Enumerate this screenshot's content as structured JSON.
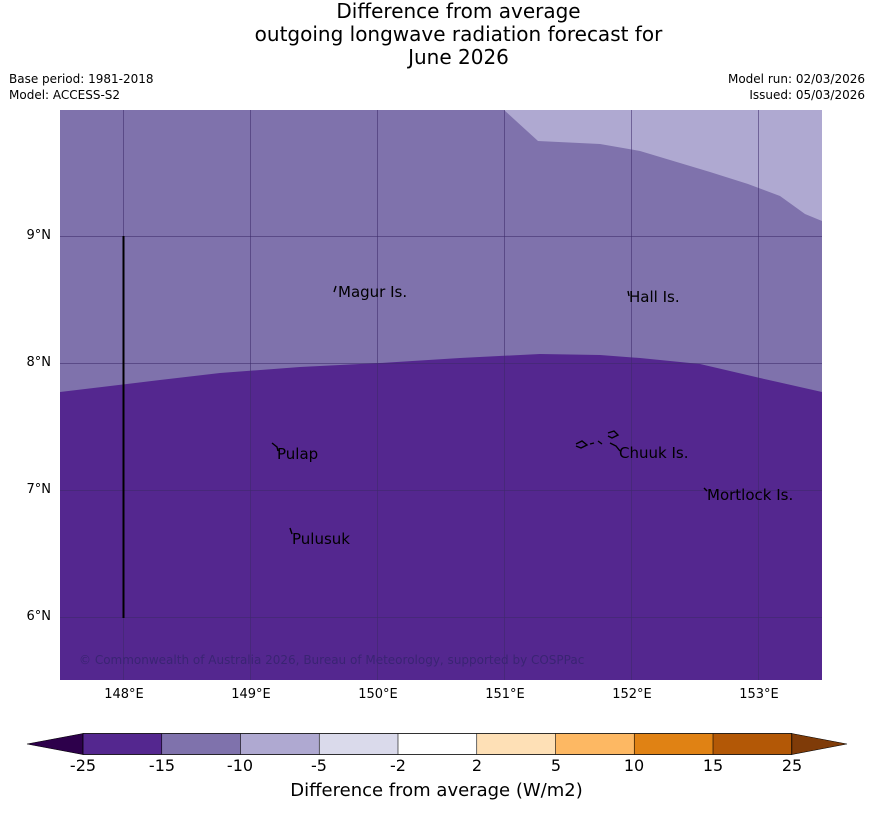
{
  "title": {
    "line1": "Difference from average",
    "line2": "outgoing longwave radiation forecast for",
    "line3": "June 2026"
  },
  "meta": {
    "base_period": "Base period: 1981-2018",
    "model": "Model: ACCESS-S2",
    "model_run": "Model run: 02/03/2026",
    "issued": "Issued: 05/03/2026"
  },
  "map": {
    "latitude_labels": [
      "9°N",
      "8°N",
      "7°N",
      "6°N"
    ],
    "longitude_labels": [
      "148°E",
      "149°E",
      "150°E",
      "151°E",
      "152°E",
      "153°E"
    ],
    "places": [
      {
        "name": "Magur Is.",
        "lon": 149.7,
        "lat": 8.55
      },
      {
        "name": "Hall Is.",
        "lon": 151.98,
        "lat": 8.52
      },
      {
        "name": "Pulap",
        "lon": 149.2,
        "lat": 7.28
      },
      {
        "name": "Chuuk Is.",
        "lon": 151.9,
        "lat": 7.28
      },
      {
        "name": "Mortlock Is.",
        "lon": 152.6,
        "lat": 6.95
      },
      {
        "name": "Pulusuk",
        "lon": 149.32,
        "lat": 6.61
      }
    ],
    "copyright": "© Commonwealth of Australia 2026, Bureau of Meteorology, supported by COSPPac",
    "colors": {
      "band_lt_minus15": "#54278f",
      "band_minus15_to_minus10": "#7f72ac",
      "band_minus10_to_minus5": "#afa9d1",
      "grid": "#3c2a6a"
    }
  },
  "colorbar": {
    "title": "Difference from average (W/m2)",
    "tick_labels": [
      "-25",
      "-15",
      "-10",
      "-5",
      "-2",
      "2",
      "5",
      "10",
      "15",
      "25"
    ],
    "segment_colors": [
      "#54278f",
      "#7f72ac",
      "#afa9d1",
      "#dadaeb",
      "#ffffff",
      "#fee0b6",
      "#fdb863",
      "#e08214",
      "#b35806"
    ],
    "under_color": "#2d004b",
    "over_color": "#7f3b08"
  }
}
